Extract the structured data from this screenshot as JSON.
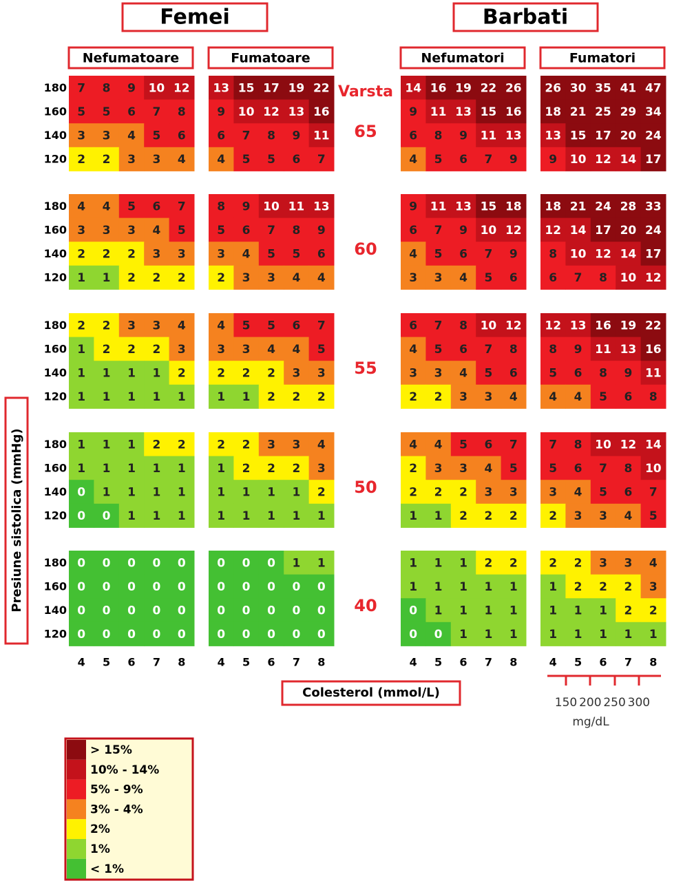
{
  "headers": {
    "women": "Femei",
    "men": "Barbati"
  },
  "groups": [
    {
      "subgroups": [
        {
          "title": "Nefumatoare",
          "grids": [
            [
              [
                7,
                8,
                9,
                10,
                12
              ],
              [
                5,
                5,
                6,
                7,
                8
              ],
              [
                3,
                3,
                4,
                5,
                6
              ],
              [
                2,
                2,
                3,
                3,
                4
              ]
            ],
            [
              [
                4,
                4,
                5,
                6,
                7
              ],
              [
                3,
                3,
                3,
                4,
                5
              ],
              [
                2,
                2,
                2,
                3,
                3
              ],
              [
                1,
                1,
                2,
                2,
                2
              ]
            ],
            [
              [
                2,
                2,
                3,
                3,
                4
              ],
              [
                1,
                2,
                2,
                2,
                3
              ],
              [
                1,
                1,
                1,
                1,
                2
              ],
              [
                1,
                1,
                1,
                1,
                1
              ]
            ],
            [
              [
                1,
                1,
                1,
                2,
                2
              ],
              [
                1,
                1,
                1,
                1,
                1
              ],
              [
                0,
                1,
                1,
                1,
                1
              ],
              [
                0,
                0,
                1,
                1,
                1
              ]
            ],
            [
              [
                0,
                0,
                0,
                0,
                0
              ],
              [
                0,
                0,
                0,
                0,
                0
              ],
              [
                0,
                0,
                0,
                0,
                0
              ],
              [
                0,
                0,
                0,
                0,
                0
              ]
            ]
          ]
        },
        {
          "title": "Fumatoare",
          "grids": [
            [
              [
                13,
                15,
                17,
                19,
                22
              ],
              [
                9,
                10,
                12,
                13,
                16
              ],
              [
                6,
                7,
                8,
                9,
                11
              ],
              [
                4,
                5,
                5,
                6,
                7
              ]
            ],
            [
              [
                8,
                9,
                10,
                11,
                13
              ],
              [
                5,
                6,
                7,
                8,
                9
              ],
              [
                3,
                4,
                5,
                5,
                6
              ],
              [
                2,
                3,
                3,
                4,
                4
              ]
            ],
            [
              [
                4,
                5,
                5,
                6,
                7
              ],
              [
                3,
                3,
                4,
                4,
                5
              ],
              [
                2,
                2,
                2,
                3,
                3
              ],
              [
                1,
                1,
                2,
                2,
                2
              ]
            ],
            [
              [
                2,
                2,
                3,
                3,
                4
              ],
              [
                1,
                2,
                2,
                2,
                3
              ],
              [
                1,
                1,
                1,
                1,
                2
              ],
              [
                1,
                1,
                1,
                1,
                1
              ]
            ],
            [
              [
                0,
                0,
                0,
                1,
                1
              ],
              [
                0,
                0,
                0,
                0,
                0
              ],
              [
                0,
                0,
                0,
                0,
                0
              ],
              [
                0,
                0,
                0,
                0,
                0
              ]
            ]
          ]
        }
      ]
    },
    {
      "subgroups": [
        {
          "title": "Nefumatori",
          "grids": [
            [
              [
                14,
                16,
                19,
                22,
                26
              ],
              [
                9,
                11,
                13,
                15,
                16
              ],
              [
                6,
                8,
                9,
                11,
                13
              ],
              [
                4,
                5,
                6,
                7,
                9
              ]
            ],
            [
              [
                9,
                11,
                13,
                15,
                18
              ],
              [
                6,
                7,
                9,
                10,
                12
              ],
              [
                4,
                5,
                6,
                7,
                9
              ],
              [
                3,
                3,
                4,
                5,
                6
              ]
            ],
            [
              [
                6,
                7,
                8,
                10,
                12
              ],
              [
                4,
                5,
                6,
                7,
                8
              ],
              [
                3,
                3,
                4,
                5,
                6
              ],
              [
                2,
                2,
                3,
                3,
                4
              ]
            ],
            [
              [
                4,
                4,
                5,
                6,
                7
              ],
              [
                2,
                3,
                3,
                4,
                5
              ],
              [
                2,
                2,
                2,
                3,
                3
              ],
              [
                1,
                1,
                2,
                2,
                2
              ]
            ],
            [
              [
                1,
                1,
                1,
                2,
                2
              ],
              [
                1,
                1,
                1,
                1,
                1
              ],
              [
                0,
                1,
                1,
                1,
                1
              ],
              [
                0,
                0,
                1,
                1,
                1
              ]
            ]
          ]
        },
        {
          "title": "Fumatori",
          "grids": [
            [
              [
                26,
                30,
                35,
                41,
                47
              ],
              [
                18,
                21,
                25,
                29,
                34
              ],
              [
                13,
                15,
                17,
                20,
                24
              ],
              [
                9,
                10,
                12,
                14,
                17
              ]
            ],
            [
              [
                18,
                21,
                24,
                28,
                33
              ],
              [
                12,
                14,
                17,
                20,
                24
              ],
              [
                8,
                10,
                12,
                14,
                17
              ],
              [
                6,
                7,
                8,
                10,
                12
              ]
            ],
            [
              [
                12,
                13,
                16,
                19,
                22
              ],
              [
                8,
                9,
                11,
                13,
                16
              ],
              [
                5,
                6,
                8,
                9,
                11
              ],
              [
                4,
                4,
                5,
                6,
                8
              ]
            ],
            [
              [
                7,
                8,
                10,
                12,
                14
              ],
              [
                5,
                6,
                7,
                8,
                10
              ],
              [
                3,
                4,
                5,
                6,
                7
              ],
              [
                2,
                3,
                3,
                4,
                5
              ]
            ],
            [
              [
                2,
                2,
                3,
                3,
                4
              ],
              [
                1,
                2,
                2,
                2,
                3
              ],
              [
                1,
                1,
                1,
                2,
                2
              ],
              [
                1,
                1,
                1,
                1,
                1
              ]
            ]
          ]
        }
      ]
    }
  ],
  "age_label": "Varsta",
  "ages": [
    65,
    60,
    55,
    50,
    40
  ],
  "systolic": [
    180,
    160,
    140,
    120
  ],
  "cholesterol": [
    4,
    5,
    6,
    7,
    8
  ],
  "x_label": "Colesterol (mmol/L)",
  "y_label": "Presiune sistolica (mmHg)",
  "mgdl": {
    "ticks": [
      150,
      200,
      250,
      300
    ],
    "unit": "mg/dL"
  },
  "legend": [
    {
      "label": "> 15%",
      "color": "#8c0b10"
    },
    {
      "label": "10% - 14%",
      "color": "#c4121b"
    },
    {
      "label": "5% - 9%",
      "color": "#ed1c24"
    },
    {
      "label": "3% - 4%",
      "color": "#f5821f"
    },
    {
      "label": "2%",
      "color": "#fff200"
    },
    {
      "label": "1%",
      "color": "#8fd630"
    },
    {
      "label": "< 1%",
      "color": "#44c033"
    }
  ]
}
